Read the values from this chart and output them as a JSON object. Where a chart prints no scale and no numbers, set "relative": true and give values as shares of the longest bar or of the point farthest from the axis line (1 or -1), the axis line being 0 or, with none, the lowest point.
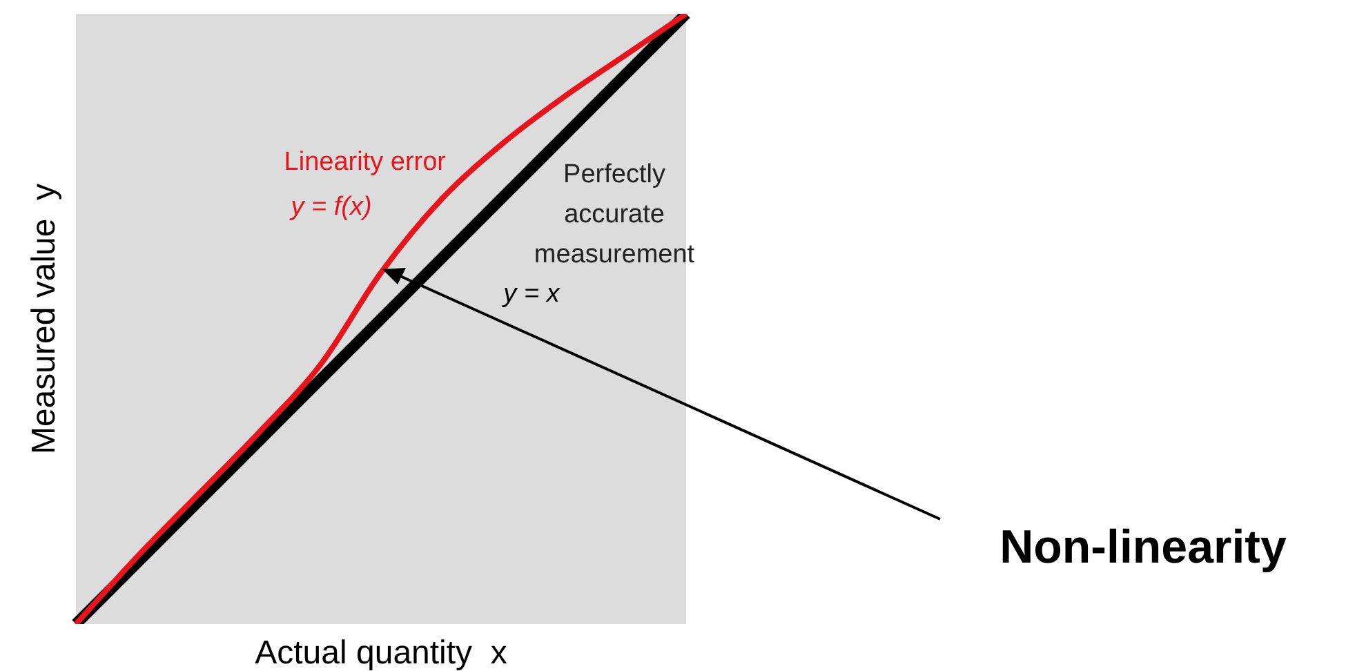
{
  "chart_data": {
    "type": "line",
    "relative": true,
    "xlabel": "Actual quantity  x",
    "ylabel": "Measured value  y",
    "categories": [
      null,
      null,
      null,
      null,
      null,
      null,
      null,
      null,
      null,
      null,
      null
    ],
    "series": [
      {
        "name": "Linearity error",
        "color": "#e8141b",
        "values": [
          0,
          0.11,
          0.212,
          0.314,
          0.424,
          0.576,
          0.697,
          0.788,
          0.864,
          0.932,
          1
        ]
      },
      {
        "name": "Perfectly accurate measurement",
        "color": "#000000",
        "values": [
          0,
          0.1,
          0.2,
          0.3,
          0.4,
          0.5,
          0.6,
          0.7,
          0.8,
          0.9,
          1
        ]
      }
    ],
    "annotations": [
      "y = f(x)",
      "y = x",
      "Non-linearity"
    ],
    "legend": false,
    "marker": "none",
    "line_style": "solid"
  }
}
